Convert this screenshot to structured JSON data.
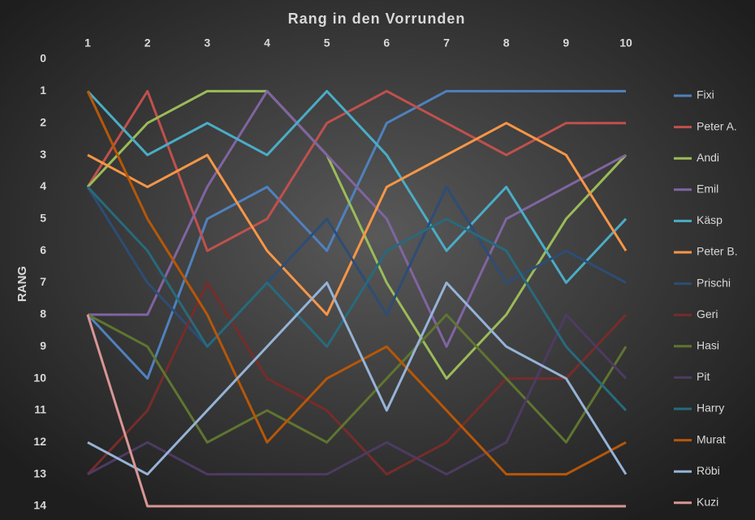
{
  "chart_data": {
    "type": "line",
    "title": "Rang in den Vorrunden",
    "y_label": "RANG",
    "x": [
      1,
      2,
      3,
      4,
      5,
      6,
      7,
      8,
      9,
      10
    ],
    "xlim": [
      1,
      10
    ],
    "xticks": [
      1,
      2,
      3,
      4,
      5,
      6,
      7,
      8,
      9,
      10
    ],
    "x_axis_position": "top",
    "ylim": [
      0,
      14
    ],
    "yticks": [
      0,
      1,
      2,
      3,
      4,
      5,
      6,
      7,
      8,
      9,
      10,
      11,
      12,
      13,
      14
    ],
    "y_reversed": true,
    "grid": false,
    "legend": "right",
    "series": [
      {
        "name": "Fixi",
        "color": "#4f81bd",
        "values": [
          8,
          10,
          5,
          4,
          6,
          2,
          1,
          1,
          1,
          1
        ]
      },
      {
        "name": "Peter A.",
        "color": "#c0504d",
        "values": [
          4,
          1,
          6,
          5,
          2,
          1,
          2,
          3,
          2,
          2
        ]
      },
      {
        "name": "Andi",
        "color": "#9bbb59",
        "values": [
          4,
          2,
          1,
          1,
          3,
          7,
          10,
          8,
          5,
          3
        ]
      },
      {
        "name": "Emil",
        "color": "#8064a2",
        "values": [
          8,
          8,
          4,
          1,
          3,
          5,
          9,
          5,
          4,
          3
        ]
      },
      {
        "name": "Käsp",
        "color": "#4bacc6",
        "values": [
          1,
          3,
          2,
          3,
          1,
          3,
          6,
          4,
          7,
          5
        ]
      },
      {
        "name": "Peter B.",
        "color": "#f79646",
        "values": [
          3,
          4,
          3,
          6,
          8,
          4,
          3,
          2,
          3,
          6
        ]
      },
      {
        "name": "Prischi",
        "color": "#2c4d75",
        "values": [
          4,
          7,
          9,
          7,
          5,
          8,
          4,
          7,
          6,
          7
        ]
      },
      {
        "name": "Geri",
        "color": "#772c2a",
        "values": [
          13,
          11,
          7,
          10,
          11,
          13,
          12,
          10,
          10,
          8
        ]
      },
      {
        "name": "Hasi",
        "color": "#5f7530",
        "values": [
          8,
          9,
          12,
          11,
          12,
          10,
          8,
          10,
          12,
          9
        ]
      },
      {
        "name": "Pit",
        "color": "#4d3b62",
        "values": [
          13,
          12,
          13,
          13,
          13,
          12,
          13,
          12,
          8,
          10
        ]
      },
      {
        "name": "Harry",
        "color": "#276a7c",
        "values": [
          4,
          6,
          9,
          7,
          9,
          6,
          5,
          6,
          9,
          11
        ]
      },
      {
        "name": "Murat",
        "color": "#b65708",
        "values": [
          1,
          5,
          8,
          12,
          10,
          9,
          11,
          13,
          13,
          12
        ]
      },
      {
        "name": "Röbi",
        "color": "#95b3d7",
        "values": [
          12,
          13,
          11,
          9,
          7,
          11,
          7,
          9,
          10,
          13
        ]
      },
      {
        "name": "Kuzi",
        "color": "#d99694",
        "values": [
          8,
          14,
          14,
          14,
          14,
          14,
          14,
          14,
          14,
          14
        ]
      }
    ]
  }
}
